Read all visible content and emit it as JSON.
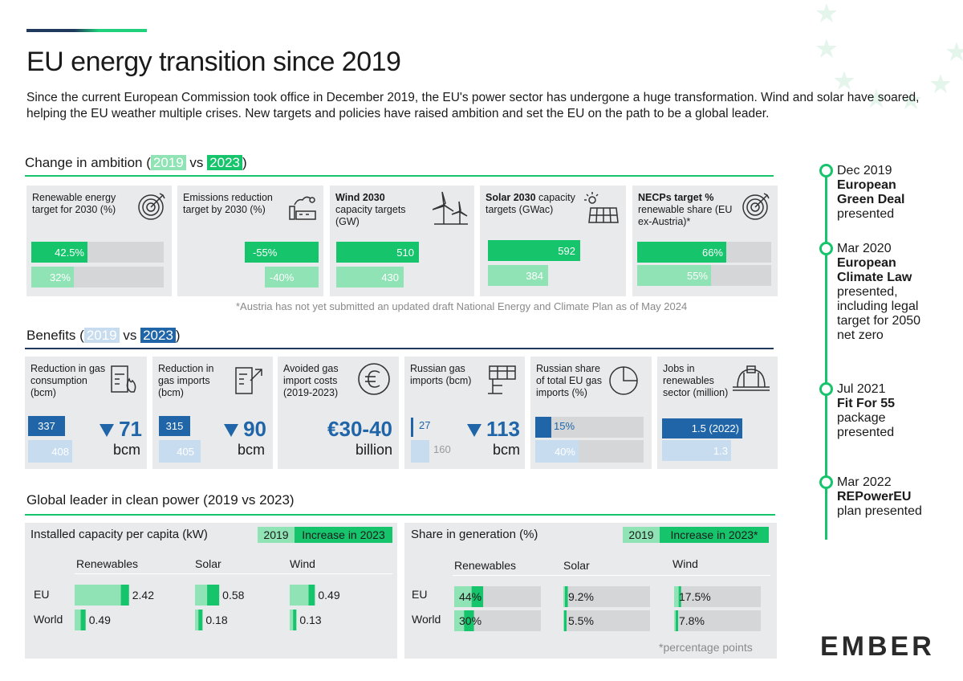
{
  "title": "EU energy transition since 2019",
  "intro": "Since the current European Commission took office in December 2019, the EU's power sector has undergone a huge transformation. Wind and solar have soared, helping the EU weather multiple crises. New targets and policies have raised ambition and set the EU on the path to be a global leader.",
  "ambition": {
    "title_prefix": "Change in ambition (",
    "y2019": "2019",
    "vs": " vs ",
    "y2023": "2023",
    "title_suffix": ")",
    "footnote": "*Austria has not yet submitted an updated draft National Energy and Climate Plan as of May 2024",
    "cards": [
      {
        "title": "Renewable energy target for 2030 (%)",
        "icon": "target-icon",
        "new_label": "42.5%",
        "old_label": "32%"
      },
      {
        "title": "Emissions reduction target by 2030 (%)",
        "icon": "factory-icon",
        "new_label": "-55%",
        "old_label": "-40%"
      },
      {
        "title_bold": "Wind 2030",
        "title_rest": "capacity targets (GW)",
        "icon": "wind-turbine-icon",
        "new_label": "510",
        "old_label": "430"
      },
      {
        "title_bold": "Solar 2030",
        "title_rest": "capacity targets (GWac)",
        "icon": "solar-panel-icon",
        "new_label": "592",
        "old_label": "384"
      },
      {
        "title_bold": "NECPs target %",
        "title_rest": "renewable share (EU ex-Austria)*",
        "icon": "target-icon",
        "new_label": "66%",
        "old_label": "55%"
      }
    ]
  },
  "benefits": {
    "title_prefix": "Benefits (",
    "y2019": "2019",
    "vs": " vs ",
    "y2023": "2023",
    "title_suffix": ")",
    "cards": [
      {
        "title": "Reduction in gas consumption (bcm)",
        "icon": "gas-flame-icon",
        "v2023": "337",
        "v2019": "408",
        "delta": "71",
        "unit": "bcm"
      },
      {
        "title": "Reduction in gas imports (bcm)",
        "icon": "gas-import-icon",
        "v2023": "315",
        "v2019": "405",
        "delta": "90",
        "unit": "bcm"
      },
      {
        "title": "Avoided gas import costs (2019-2023)",
        "icon": "euro-icon",
        "big": "€30-40",
        "unit": "billion"
      },
      {
        "title": "Russian gas imports (bcm)",
        "icon": "pipeline-icon",
        "v2023": "27",
        "v2019": "160",
        "delta": "113",
        "unit": "bcm"
      },
      {
        "title": "Russian share of total EU gas imports (%)",
        "icon": "pie-chart-icon",
        "v2023": "15%",
        "v2019": "40%"
      },
      {
        "title": "Jobs in renewables sector (million)",
        "icon": "hard-hat-icon",
        "v2023": "1.5 (2022)",
        "v2019": "1.3"
      }
    ]
  },
  "global": {
    "title": "Global leader in clean power (2019 vs 2023)",
    "capacity": {
      "title": "Installed capacity per capita (kW)",
      "legend_2019": "2019",
      "legend_increase": "Increase in 2023",
      "cols": [
        "Renewables",
        "Solar",
        "Wind"
      ],
      "rows": [
        "EU",
        "World"
      ]
    },
    "share": {
      "title": "Share in generation (%)",
      "legend_2019": "2019",
      "legend_increase": "Increase in 2023*",
      "cols": [
        "Renewables",
        "Solar",
        "Wind"
      ],
      "rows": [
        "EU",
        "World"
      ],
      "footnote": "*percentage points"
    }
  },
  "chart_data": [
    {
      "type": "bar",
      "title": "Renewable energy target for 2030 (%)",
      "series": [
        {
          "name": "2023",
          "values": [
            42.5
          ]
        },
        {
          "name": "2019",
          "values": [
            32
          ]
        }
      ]
    },
    {
      "type": "bar",
      "title": "Emissions reduction target by 2030 (%)",
      "series": [
        {
          "name": "2023",
          "values": [
            -55
          ]
        },
        {
          "name": "2019",
          "values": [
            -40
          ]
        }
      ]
    },
    {
      "type": "bar",
      "title": "Wind 2030 capacity targets (GW)",
      "series": [
        {
          "name": "2023",
          "values": [
            510
          ]
        },
        {
          "name": "2019",
          "values": [
            430
          ]
        }
      ]
    },
    {
      "type": "bar",
      "title": "Solar 2030 capacity targets (GWac)",
      "series": [
        {
          "name": "2023",
          "values": [
            592
          ]
        },
        {
          "name": "2019",
          "values": [
            384
          ]
        }
      ]
    },
    {
      "type": "bar",
      "title": "NECPs target % renewable share (EU ex-Austria)*",
      "series": [
        {
          "name": "2023",
          "values": [
            66
          ]
        },
        {
          "name": "2019",
          "values": [
            55
          ]
        }
      ]
    },
    {
      "type": "bar",
      "title": "Reduction in gas consumption (bcm)",
      "series": [
        {
          "name": "2023",
          "values": [
            337
          ]
        },
        {
          "name": "2019",
          "values": [
            408
          ]
        }
      ]
    },
    {
      "type": "bar",
      "title": "Reduction in gas imports (bcm)",
      "series": [
        {
          "name": "2023",
          "values": [
            315
          ]
        },
        {
          "name": "2019",
          "values": [
            405
          ]
        }
      ]
    },
    {
      "type": "bar",
      "title": "Russian gas imports (bcm)",
      "series": [
        {
          "name": "2023",
          "values": [
            27
          ]
        },
        {
          "name": "2019",
          "values": [
            160
          ]
        }
      ]
    },
    {
      "type": "bar",
      "title": "Russian share of total EU gas imports (%)",
      "series": [
        {
          "name": "2023",
          "values": [
            15
          ]
        },
        {
          "name": "2019",
          "values": [
            40
          ]
        }
      ]
    },
    {
      "type": "bar",
      "title": "Jobs in renewables sector (million)",
      "series": [
        {
          "name": "2023",
          "values": [
            1.5
          ]
        },
        {
          "name": "2019",
          "values": [
            1.3
          ]
        }
      ]
    },
    {
      "type": "bar",
      "title": "Installed capacity per capita (kW)",
      "categories": [
        "EU",
        "World"
      ],
      "groups": [
        "Renewables",
        "Solar",
        "Wind"
      ],
      "values_2023": {
        "Renewables": [
          2.42,
          0.49
        ],
        "Solar": [
          0.58,
          0.18
        ],
        "Wind": [
          0.49,
          0.13
        ]
      },
      "values_2023_labels": {
        "Renewables": [
          "2.42",
          "0.49"
        ],
        "Solar": [
          "0.58",
          "0.18"
        ],
        "Wind": [
          "0.49",
          "0.13"
        ]
      }
    },
    {
      "type": "bar",
      "title": "Share in generation (%)",
      "categories": [
        "EU",
        "World"
      ],
      "groups": [
        "Renewables",
        "Solar",
        "Wind"
      ],
      "values_2023": {
        "Renewables": [
          44,
          30
        ],
        "Solar": [
          9.2,
          5.5
        ],
        "Wind": [
          17.5,
          7.8
        ]
      },
      "values_2023_labels": {
        "Renewables": [
          "44%",
          "30%"
        ],
        "Solar": [
          "9.2%",
          "5.5%"
        ],
        "Wind": [
          "17.5%",
          "7.8%"
        ]
      }
    }
  ],
  "timeline": [
    {
      "date": "Dec 2019",
      "bold": "European Green Deal",
      "rest": "presented"
    },
    {
      "date": "Mar 2020",
      "bold": "European Climate Law",
      "rest": "presented, including legal target for 2050 net zero"
    },
    {
      "date": "Jul 2021",
      "bold": "Fit For 55",
      "rest": "package presented"
    },
    {
      "date": "Mar 2022",
      "bold": "REPowerEU",
      "rest": "plan presented"
    }
  ],
  "logo": "EMBER",
  "colors": {
    "green": "#16c46c",
    "light_green": "#8fe3b5",
    "blue": "#1f65a7",
    "light_blue": "#c8dcef",
    "card_bg": "#e9eaec",
    "track": "#d4d6d8"
  }
}
